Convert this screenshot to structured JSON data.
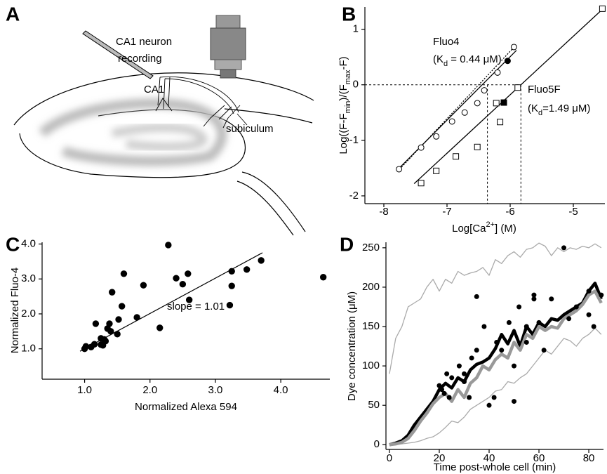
{
  "diagram": {
    "label": "A",
    "labels": [
      "CA1 neuron",
      "recording",
      "CA1",
      "subiculum"
    ]
  },
  "chart_data": [
    {
      "type": "scatter",
      "label": "B",
      "xlabel": [
        {
          "text": "Log[Ca"
        },
        {
          "sup": "2+"
        },
        {
          "text": "] (M)"
        }
      ],
      "ylabel": [
        {
          "text": "Log((F-F"
        },
        {
          "sub": "min"
        },
        {
          "text": ")/(F"
        },
        {
          "sub": "max"
        },
        {
          "text": "-F)"
        }
      ],
      "xlim": [
        -8.3,
        -4.5
      ],
      "xticks": [
        -8,
        -7,
        -6,
        -5
      ],
      "ylim": [
        -2.14,
        1.4
      ],
      "yticks": [
        -2,
        -1,
        0,
        1
      ],
      "ref_x": [
        -6.36,
        -5.83
      ],
      "ref_y": 0,
      "annotations": [
        [
          {
            "text": "Fluo4"
          }
        ],
        [
          {
            "text": "(K"
          },
          {
            "sub": "d"
          },
          {
            "text": " = 0.44 μM)"
          }
        ],
        [
          {
            "text": "Fluo5F"
          }
        ],
        [
          {
            "text": "(K"
          },
          {
            "sub": "d"
          },
          {
            "text": "=1.49 μM)"
          }
        ]
      ],
      "series": [
        {
          "color": "#000000",
          "line": 1.3,
          "dash": true,
          "x": [
            -7.75,
            -5.92
          ],
          "values": [
            -1.52,
            0.7
          ]
        },
        {
          "color": "#000000",
          "line": 1.3,
          "x": [
            -7.8,
            -5.9
          ],
          "values": [
            -1.55,
            0.62
          ]
        },
        {
          "color": "#000000",
          "line": 1.3,
          "x": [
            -7.52,
            -4.5
          ],
          "values": [
            -1.78,
            1.4
          ]
        },
        {
          "color": "#000000",
          "marker": "circle",
          "x": [
            -7.76,
            -7.41,
            -7.17,
            -6.92,
            -6.72,
            -6.52,
            -6.41,
            -6.2,
            -5.94
          ],
          "values": [
            -1.52,
            -1.13,
            -0.93,
            -0.66,
            -0.5,
            -0.33,
            -0.1,
            0.22,
            0.68
          ]
        },
        {
          "color": "#000000",
          "marker": "circle-filled",
          "x": [
            -6.04
          ],
          "values": [
            0.43
          ]
        },
        {
          "color": "#000000",
          "marker": "square",
          "x": [
            -7.41,
            -7.17,
            -6.86,
            -6.52,
            -6.16,
            -6.22,
            -5.88,
            -4.54
          ],
          "values": [
            -1.77,
            -1.55,
            -1.29,
            -1.12,
            -0.67,
            -0.33,
            -0.05,
            1.37
          ]
        },
        {
          "color": "#000000",
          "marker": "square-filled",
          "x": [
            -6.1
          ],
          "values": [
            -0.32
          ]
        }
      ]
    },
    {
      "type": "scatter",
      "label": "C",
      "xlabel": [
        {
          "text": "Normalized Alexa 594"
        }
      ],
      "ylabel": [
        {
          "text": "Normalized Fluo-4"
        }
      ],
      "xlim": [
        0.35,
        4.75
      ],
      "xticks": [
        {
          "value": 1,
          "label": "1.0"
        },
        {
          "value": 2,
          "label": "2.0"
        },
        {
          "value": 3,
          "label": "3.0"
        },
        {
          "value": 4,
          "label": "4.0"
        }
      ],
      "ylim": [
        0.13,
        4.05
      ],
      "yticks": [
        {
          "value": 1,
          "label": "1.0"
        },
        {
          "value": 2,
          "label": "2.0"
        },
        {
          "value": 3,
          "label": "3.0"
        },
        {
          "value": 4,
          "label": "4.0"
        }
      ],
      "annotations": [
        [
          {
            "text": "slope = 1.01"
          }
        ]
      ],
      "series": [
        {
          "color": "#000000",
          "line": 1.2,
          "x": [
            0.93,
            3.72
          ],
          "values": [
            0.93,
            3.75
          ]
        },
        {
          "color": "#000000",
          "marker": "dot",
          "x": [
            1.0,
            1.02,
            1.1,
            1.15,
            1.17,
            1.25,
            1.28,
            1.25,
            1.3,
            1.32,
            1.35,
            1.4,
            1.38,
            1.42,
            1.5,
            1.52,
            1.57,
            1.6,
            1.8,
            1.9,
            2.15,
            2.28,
            2.4,
            2.5,
            2.58,
            2.6,
            3.22,
            3.25,
            3.25,
            3.48,
            3.7,
            4.65
          ],
          "values": [
            1.0,
            1.07,
            1.05,
            1.13,
            1.72,
            1.12,
            1.1,
            1.3,
            1.27,
            1.22,
            1.58,
            1.5,
            1.72,
            2.62,
            1.42,
            1.84,
            2.22,
            3.15,
            1.9,
            2.82,
            1.6,
            3.97,
            3.02,
            2.85,
            3.15,
            2.4,
            2.25,
            2.8,
            3.22,
            3.27,
            3.53,
            3.05
          ]
        }
      ]
    },
    {
      "type": "line",
      "label": "D",
      "xlabel": [
        {
          "text": "Time post-whole cell (min)"
        }
      ],
      "ylabel": [
        {
          "text": "Dye concentration (μM)"
        }
      ],
      "xlim": [
        -1.4,
        85.9
      ],
      "xticks": [
        0,
        20,
        40,
        60,
        80
      ],
      "ylim": [
        -6,
        257
      ],
      "yticks": [
        0,
        50,
        100,
        150,
        200,
        250
      ],
      "series": [
        {
          "color": "#aaaaaa",
          "line": 1.3,
          "x": [
            0,
            2.5,
            5,
            7.5,
            10,
            12.5,
            15,
            17.5,
            20,
            22.5,
            25,
            27.5,
            30,
            32.5,
            35,
            37.5,
            40,
            42.5,
            45,
            47.5,
            50,
            52.5,
            55,
            57.5,
            60,
            62.5,
            65,
            67.5,
            70,
            72.5,
            75,
            77.5,
            80,
            82.5,
            85
          ],
          "values": [
            90,
            135,
            150,
            175,
            180,
            185,
            200,
            210,
            195,
            210,
            205,
            220,
            215,
            218,
            220,
            225,
            215,
            235,
            230,
            240,
            245,
            238,
            248,
            250,
            256,
            252,
            240,
            250,
            245,
            250,
            248,
            252,
            250,
            255,
            250
          ]
        },
        {
          "color": "#aaaaaa",
          "line": 1.3,
          "x": [
            0,
            2.5,
            5,
            7.5,
            10,
            12.5,
            15,
            17.5,
            20,
            22.5,
            25,
            27.5,
            30,
            32.5,
            35,
            37.5,
            40,
            42.5,
            45,
            47.5,
            50,
            52.5,
            55,
            57.5,
            60,
            62.5,
            65,
            67.5,
            70,
            72.5,
            75,
            77.5,
            80,
            82.5,
            85
          ],
          "values": [
            0,
            0,
            1,
            2,
            3,
            5,
            8,
            10,
            15,
            22,
            30,
            28,
            35,
            45,
            50,
            55,
            60,
            68,
            70,
            80,
            78,
            85,
            90,
            100,
            110,
            120,
            115,
            125,
            135,
            132,
            125,
            135,
            140,
            148,
            140
          ]
        },
        {
          "color": "#000000",
          "line": 4.5,
          "x": [
            0,
            2.5,
            5,
            7.5,
            10,
            12.5,
            15,
            17.5,
            20,
            22.5,
            25,
            27.5,
            30,
            32.5,
            35,
            37.5,
            40,
            42.5,
            45,
            47.5,
            50,
            52.5,
            55,
            57.5,
            60,
            62.5,
            65,
            67.5,
            70,
            72.5,
            75,
            77.5,
            80,
            82.5,
            85
          ],
          "values": [
            0,
            2,
            5,
            12,
            25,
            35,
            45,
            55,
            70,
            78,
            72,
            85,
            80,
            95,
            102,
            105,
            110,
            122,
            140,
            128,
            145,
            125,
            150,
            140,
            155,
            150,
            160,
            158,
            165,
            170,
            175,
            180,
            195,
            205,
            185
          ]
        },
        {
          "color": "#999999",
          "line": 4.5,
          "x": [
            0,
            2.5,
            5,
            7.5,
            10,
            12.5,
            15,
            17.5,
            20,
            22.5,
            25,
            27.5,
            30,
            32.5,
            35,
            37.5,
            40,
            42.5,
            45,
            47.5,
            50,
            52.5,
            55,
            57.5,
            60,
            62.5,
            65,
            67.5,
            70,
            72.5,
            75,
            77.5,
            80,
            82.5,
            85
          ],
          "values": [
            0,
            1,
            3,
            8,
            18,
            30,
            40,
            52,
            60,
            65,
            55,
            70,
            60,
            78,
            85,
            100,
            95,
            108,
            115,
            110,
            130,
            120,
            140,
            135,
            150,
            145,
            150,
            148,
            160,
            165,
            170,
            178,
            190,
            195,
            180
          ]
        },
        {
          "color": "#000000",
          "marker": "dot",
          "x": [
            20,
            21,
            22,
            23,
            24,
            25,
            28,
            30,
            30,
            32,
            33,
            35,
            35,
            38,
            40,
            42,
            43,
            45,
            48,
            50,
            50,
            52,
            55,
            55,
            58,
            58,
            60,
            62,
            65,
            70,
            72,
            75,
            80,
            80,
            82,
            85
          ],
          "values": [
            75,
            70,
            65,
            90,
            60,
            85,
            100,
            80,
            90,
            60,
            110,
            188,
            120,
            150,
            50,
            60,
            130,
            120,
            155,
            55,
            100,
            175,
            130,
            150,
            190,
            185,
            155,
            120,
            185,
            250,
            160,
            175,
            165,
            195,
            150,
            190
          ]
        }
      ]
    }
  ]
}
